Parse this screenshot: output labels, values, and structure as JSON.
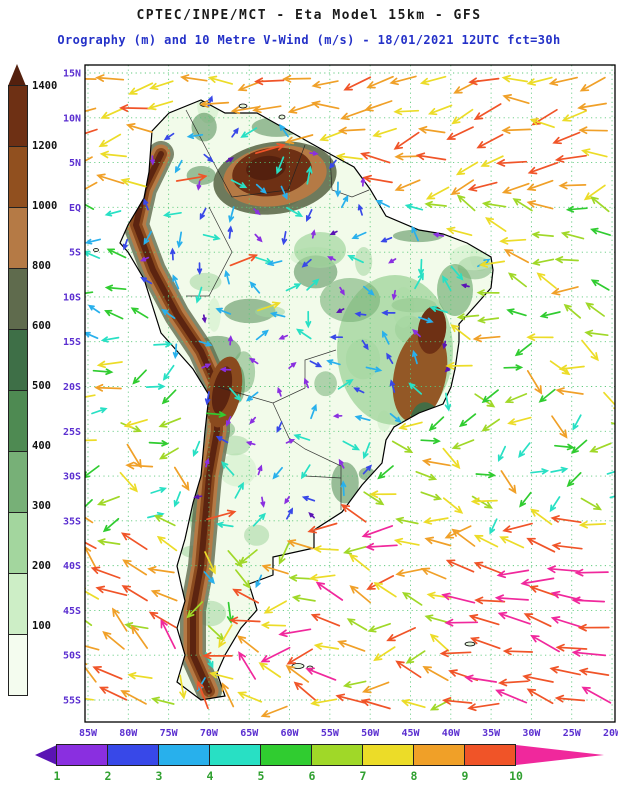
{
  "header": {
    "title": "CPTEC/INPE/MCT -  Eta Model 15km - GFS",
    "subtitle": "Orography (m) and 10 Metre V-Wind (m/s) - 18/01/2021 12UTC fct=30h"
  },
  "chart_data": {
    "type": "heatmap",
    "title": "Orography (m) and 10 Metre V-Wind (m/s)",
    "subtitle": "18/01/2021 12UTC fct=30h",
    "lat_ticks": [
      "15N",
      "10N",
      "5N",
      "EQ",
      "5S",
      "10S",
      "15S",
      "20S",
      "25S",
      "30S",
      "35S",
      "40S",
      "45S",
      "50S",
      "55S"
    ],
    "lon_ticks": [
      "85W",
      "80W",
      "75W",
      "70W",
      "65W",
      "60W",
      "55W",
      "50W",
      "45W",
      "40W",
      "35W",
      "30W",
      "25W",
      "20W"
    ],
    "orography_scale": {
      "units": "m",
      "tick_labels": [
        "1400",
        "1200",
        "1000",
        "800",
        "600",
        "500",
        "400",
        "300",
        "200",
        "100"
      ],
      "over_color": "#54200e",
      "segment_colors_top_to_bottom": [
        "#6e3014",
        "#91501f",
        "#b57a45",
        "#5f6b4d",
        "#3e6f47",
        "#4e8a52",
        "#77b077",
        "#a3d69e",
        "#cdeec6",
        "#f4fcef"
      ]
    },
    "wind_scale": {
      "units": "m/s",
      "tick_labels": [
        "1",
        "2",
        "3",
        "4",
        "5",
        "6",
        "7",
        "8",
        "9",
        "10"
      ],
      "under_color": "#5a14b4",
      "over_color": "#f0289c",
      "segment_colors_left_to_right": [
        "#8a2fe0",
        "#3848e8",
        "#28b0ec",
        "#28e0c4",
        "#30cc30",
        "#a0d828",
        "#ecdc28",
        "#f0a028",
        "#f05428"
      ]
    }
  },
  "colors": {
    "subtitle_text": "#2431c8",
    "axis_labels": "#5b2fd0",
    "wind_tick_labels": "#30a030",
    "grid": "#58c878",
    "land_base": "#f2fbea",
    "coastline": "#000000"
  }
}
